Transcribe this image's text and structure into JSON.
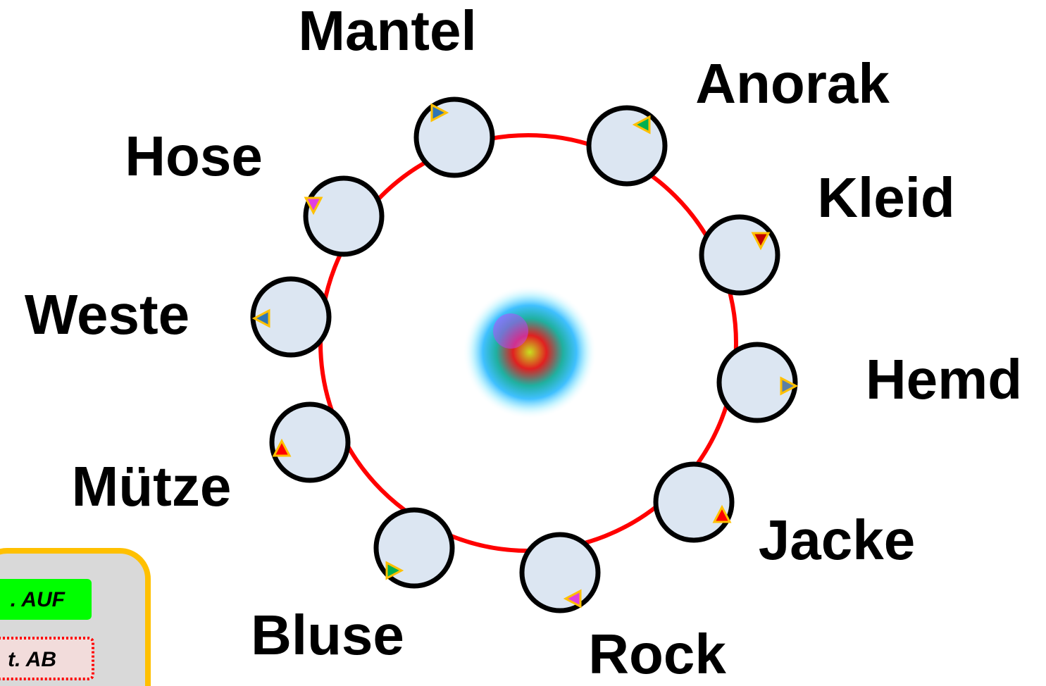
{
  "nodes": [
    {
      "label": "Mantel"
    },
    {
      "label": "Anorak"
    },
    {
      "label": "Kleid"
    },
    {
      "label": "Hemd"
    },
    {
      "label": "Jacke"
    },
    {
      "label": "Rock"
    },
    {
      "label": "Bluse"
    },
    {
      "label": "Mütze"
    },
    {
      "label": "Weste"
    },
    {
      "label": "Hose"
    }
  ],
  "buttons": [
    {
      "label": ". AUF"
    },
    {
      "label": "t. AB"
    }
  ]
}
